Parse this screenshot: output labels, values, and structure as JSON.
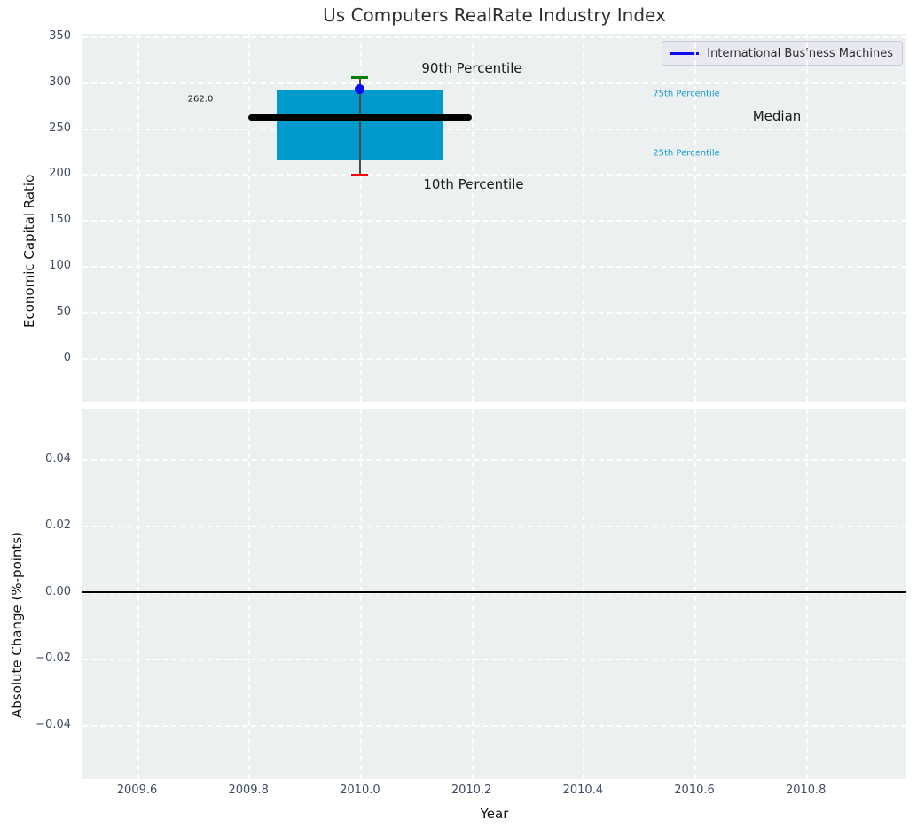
{
  "title": "Us Computers RealRate Industry Index",
  "legend": {
    "label": "International Business Machines"
  },
  "axes": {
    "top_ylabel": "Economic Capital Ratio",
    "bottom_ylabel": "Absolute Change (%-points)",
    "xlabel": "Year"
  },
  "annotations": {
    "p90": "90th Percentile",
    "p10": "10th Percentile",
    "p75": "75th Percentile",
    "p25": "25th Percentile",
    "median": "Median",
    "median_value": "262.0"
  },
  "colors": {
    "box_fill": "#009acd",
    "company_marker": "#0d0df0",
    "p90_cap": "#008000",
    "p10_cap": "#ff0000",
    "median_line": "#000000",
    "whisker": "#4a4a4a",
    "zero_line": "#000000",
    "percentile_label": "#149bce",
    "axes_background": "#ecf0f1",
    "grid": "#ffffff",
    "tick_label": "#3f4d63"
  },
  "chart_data": [
    {
      "type": "boxplot",
      "title": "Us Computers RealRate Industry Index",
      "ylabel": "Economic Capital Ratio",
      "xlabel": "Year",
      "legend": [
        "International Business Machines"
      ],
      "legend_position": "upper right",
      "grid": "white dashed on light gray",
      "xlim": [
        2009.5,
        2010.98
      ],
      "ylim": [
        -55,
        353
      ],
      "xticks": [
        2009.6,
        2009.8,
        2010.0,
        2010.2,
        2010.4,
        2010.6,
        2010.8
      ],
      "yticks": [
        0,
        50,
        100,
        150,
        200,
        250,
        300,
        350
      ],
      "box": {
        "x_center": 2010.0,
        "box_x_range": [
          2009.85,
          2010.15
        ],
        "median_x_range": [
          2009.8,
          2010.2
        ],
        "cap_x_range": [
          2009.985,
          2010.015
        ],
        "p10": 199,
        "p25": 215,
        "median": 262,
        "p75": 291,
        "p90": 305,
        "median_label": "262.0"
      },
      "company_point": {
        "name": "International Business Machines",
        "x": 2010.0,
        "y": 293
      }
    },
    {
      "type": "line",
      "ylabel": "Absolute Change (%-points)",
      "xlabel": "Year",
      "grid": "white dashed on light gray",
      "xlim": [
        2009.5,
        2010.98
      ],
      "ylim": [
        -0.056,
        0.056
      ],
      "xticks": [
        2009.6,
        2009.8,
        2010.0,
        2010.2,
        2010.4,
        2010.6,
        2010.8
      ],
      "yticks": [
        0.04,
        0.02,
        0.0,
        -0.02,
        -0.04
      ],
      "series": [],
      "zero_line": 0.0
    }
  ]
}
